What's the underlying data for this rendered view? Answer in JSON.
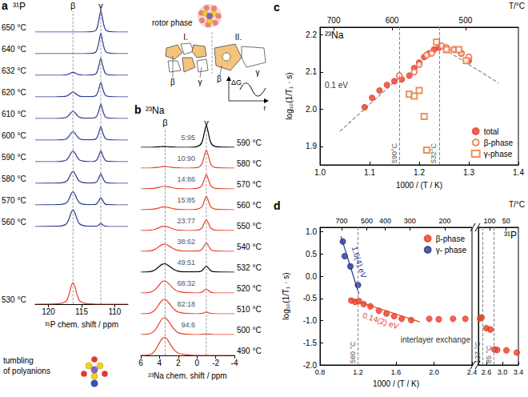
{
  "chart_data": [
    {
      "letter": "a",
      "type": "spectra",
      "title": "³¹P",
      "xlabel": "³¹P chem. shift / ppm",
      "xlim": [
        122,
        108
      ],
      "xticks": [
        120,
        115,
        110
      ],
      "ylim": [
        0,
        1
      ],
      "tick_labels": "x",
      "grid": false,
      "x": [
        122,
        119,
        118,
        117.3,
        116.9,
        116.6,
        116.3,
        116.0,
        115.7,
        115.3,
        114.6,
        113.5,
        112.8,
        112.4,
        112.1,
        111.8,
        111.4,
        110.8,
        109.5,
        108
      ],
      "reference_lines": [
        {
          "x": 116.3,
          "label": "β"
        },
        {
          "x": 112.1,
          "label": "γ"
        }
      ],
      "series": [
        {
          "name": "650 °C",
          "color": "#2b3990",
          "values": [
            0,
            0,
            0,
            0,
            0,
            0,
            0,
            0,
            0,
            0,
            0,
            0.01,
            0.09,
            0.5,
            0.9,
            0.5,
            0.09,
            0.02,
            0,
            0
          ]
        },
        {
          "name": "640 °C",
          "color": "#2b3990",
          "values": [
            0,
            0,
            0,
            0,
            0,
            0,
            0,
            0,
            0,
            0,
            0,
            0.01,
            0.09,
            0.47,
            0.85,
            0.47,
            0.09,
            0.02,
            0,
            0
          ]
        },
        {
          "name": "632 °C",
          "color": "#2b3990",
          "values": [
            0,
            0,
            0,
            0.02,
            0.05,
            0.1,
            0.12,
            0.1,
            0.05,
            0.02,
            0,
            0.01,
            0.07,
            0.39,
            0.7,
            0.39,
            0.07,
            0.01,
            0,
            0
          ]
        },
        {
          "name": "620 °C",
          "color": "#2b3990",
          "values": [
            0,
            0,
            0.01,
            0.03,
            0.09,
            0.16,
            0.2,
            0.16,
            0.09,
            0.03,
            0.01,
            0.01,
            0.06,
            0.33,
            0.6,
            0.33,
            0.06,
            0.01,
            0,
            0
          ]
        },
        {
          "name": "610 °C",
          "color": "#2b3990",
          "values": [
            0,
            0,
            0.01,
            0.05,
            0.14,
            0.24,
            0.3,
            0.24,
            0.14,
            0.05,
            0.01,
            0.01,
            0.06,
            0.33,
            0.6,
            0.33,
            0.06,
            0.01,
            0,
            0
          ]
        },
        {
          "name": "600 °C",
          "color": "#2b3990",
          "values": [
            0,
            0,
            0.01,
            0.05,
            0.16,
            0.28,
            0.35,
            0.28,
            0.16,
            0.05,
            0.01,
            0.01,
            0.06,
            0.3,
            0.55,
            0.3,
            0.06,
            0.01,
            0,
            0
          ]
        },
        {
          "name": "590 °C",
          "color": "#2b3990",
          "values": [
            0,
            0,
            0.02,
            0.07,
            0.2,
            0.36,
            0.45,
            0.36,
            0.2,
            0.07,
            0.02,
            0,
            0.05,
            0.25,
            0.45,
            0.25,
            0.05,
            0.01,
            0,
            0
          ]
        },
        {
          "name": "580 °C",
          "color": "#2b3990",
          "values": [
            0,
            0.01,
            0.02,
            0.08,
            0.23,
            0.4,
            0.5,
            0.4,
            0.23,
            0.08,
            0.02,
            0.01,
            0.04,
            0.22,
            0.4,
            0.22,
            0.04,
            0.01,
            0,
            0
          ]
        },
        {
          "name": "570 °C",
          "color": "#2b3990",
          "values": [
            0,
            0.01,
            0.02,
            0.08,
            0.25,
            0.44,
            0.55,
            0.44,
            0.25,
            0.08,
            0.02,
            0.01,
            0.03,
            0.17,
            0.3,
            0.17,
            0.03,
            0.01,
            0,
            0
          ]
        },
        {
          "name": "560 °C",
          "color": "#2b3990",
          "values": [
            0,
            0.01,
            0.03,
            0.11,
            0.32,
            0.56,
            0.7,
            0.56,
            0.32,
            0.11,
            0.03,
            0.01,
            0.01,
            0.07,
            0.12,
            0.07,
            0.01,
            0,
            0,
            0
          ]
        },
        {
          "name": "530 °C",
          "color": "#e8402a",
          "values": [
            0,
            0.01,
            0.04,
            0.14,
            0.41,
            0.72,
            0.9,
            0.72,
            0.41,
            0.14,
            0.04,
            0.01,
            0,
            0,
            0,
            0,
            0,
            0,
            0,
            0
          ]
        }
      ]
    },
    {
      "letter": "b",
      "type": "spectra",
      "title": "²³Na",
      "xlabel": "²³Na chem. shift / ppm",
      "xlim": [
        6,
        -4
      ],
      "xticks": [
        6,
        4,
        2,
        0,
        -2,
        -4
      ],
      "ylim": [
        0,
        1
      ],
      "tick_labels": "x",
      "grid": false,
      "x": [
        6,
        5,
        4.5,
        4,
        3.7,
        3.4,
        3,
        2.5,
        2,
        1,
        0,
        -0.5,
        -0.8,
        -1,
        -1.2,
        -1.5,
        -2,
        -4
      ],
      "reference_lines": [
        {
          "x": 3.4,
          "label": "β"
        },
        {
          "x": -1,
          "label": "γ"
        }
      ],
      "series": [
        {
          "name": "590 °C",
          "ratio": "5:95",
          "color": "#000000",
          "values": [
            0,
            0,
            0.01,
            0.02,
            0.03,
            0.03,
            0.02,
            0.01,
            0,
            0,
            0.03,
            0.18,
            0.63,
            0.9,
            0.63,
            0.18,
            0.03,
            0
          ]
        },
        {
          "name": "580 °C",
          "ratio": "10:90",
          "color": "#e8402a",
          "values": [
            0,
            0,
            0.02,
            0.04,
            0.06,
            0.06,
            0.05,
            0.02,
            0.01,
            0,
            0.02,
            0.15,
            0.53,
            0.75,
            0.53,
            0.15,
            0.02,
            0
          ]
        },
        {
          "name": "570 °C",
          "ratio": "14:86",
          "color": "#e8402a",
          "values": [
            0,
            0.01,
            0.03,
            0.07,
            0.1,
            0.1,
            0.08,
            0.04,
            0.01,
            0,
            0.02,
            0.12,
            0.42,
            0.6,
            0.42,
            0.12,
            0.02,
            0
          ]
        },
        {
          "name": "560 °C",
          "ratio": "15:85",
          "color": "#e8402a",
          "values": [
            0,
            0.01,
            0.03,
            0.08,
            0.11,
            0.12,
            0.09,
            0.04,
            0.01,
            0,
            0.02,
            0.11,
            0.39,
            0.55,
            0.39,
            0.11,
            0.02,
            0
          ]
        },
        {
          "name": "550 °C",
          "ratio": "23:77",
          "color": "#e8402a",
          "values": [
            0,
            0.01,
            0.05,
            0.13,
            0.17,
            0.18,
            0.14,
            0.06,
            0.02,
            0,
            0.01,
            0.09,
            0.32,
            0.45,
            0.32,
            0.09,
            0.01,
            0
          ]
        },
        {
          "name": "540 °C",
          "ratio": "38:62",
          "color": "#e8402a",
          "values": [
            0,
            0.02,
            0.08,
            0.21,
            0.29,
            0.3,
            0.23,
            0.11,
            0.04,
            0.01,
            0.01,
            0.07,
            0.25,
            0.35,
            0.25,
            0.07,
            0.01,
            0
          ]
        },
        {
          "name": "532 °C",
          "ratio": "49:51",
          "color": "#000000",
          "values": [
            0,
            0.02,
            0.09,
            0.25,
            0.33,
            0.35,
            0.26,
            0.12,
            0.04,
            0.01,
            0.01,
            0.05,
            0.18,
            0.25,
            0.18,
            0.05,
            0.01,
            0
          ]
        },
        {
          "name": "520 °C",
          "ratio": "68:32",
          "color": "#e8402a",
          "values": [
            0,
            0.03,
            0.13,
            0.35,
            0.48,
            0.5,
            0.38,
            0.18,
            0.06,
            0.01,
            0,
            0.03,
            0.11,
            0.15,
            0.11,
            0.03,
            0,
            0
          ]
        },
        {
          "name": "510 °C",
          "ratio": "82:18",
          "color": "#e8402a",
          "values": [
            0,
            0.03,
            0.15,
            0.42,
            0.57,
            0.6,
            0.45,
            0.21,
            0.07,
            0.01,
            0,
            0.01,
            0.05,
            0.07,
            0.05,
            0.01,
            0,
            0
          ]
        },
        {
          "name": "500 °C",
          "ratio": "94:6",
          "color": "#e8402a",
          "values": [
            0,
            0.04,
            0.18,
            0.49,
            0.67,
            0.7,
            0.53,
            0.25,
            0.08,
            0.01,
            0,
            0.01,
            0.02,
            0.03,
            0.02,
            0.01,
            0,
            0
          ]
        },
        {
          "name": "490 °C",
          "color": "#e8402a",
          "values": [
            0,
            0.04,
            0.19,
            0.53,
            0.71,
            0.75,
            0.56,
            0.26,
            0.09,
            0.02,
            0,
            0,
            0,
            0,
            0,
            0,
            0,
            0
          ]
        }
      ]
    },
    {
      "letter": "c",
      "type": "scatter",
      "title": "²³Na",
      "xlabel": "1000 / (T / K)",
      "ylabel": "log₁₀(1/T₁ · s)",
      "x2label": "T/°C",
      "grid": false,
      "legend": "bottom right",
      "xlim": [
        1.0,
        1.4
      ],
      "xticks": [
        {
          "value": 1,
          "label": "1.0"
        },
        1.1,
        1.2,
        1.3,
        1.4
      ],
      "x2lim": [
        1.0,
        1.4
      ],
      "x2ticks": [
        {
          "value": 1.0276,
          "label": "700"
        },
        {
          "value": 1.1453,
          "label": "600"
        },
        {
          "value": 1.2934,
          "label": "500"
        }
      ],
      "ylim": [
        1.85,
        2.22
      ],
      "yticks": [
        1.9,
        {
          "value": 2,
          "label": "2.0"
        },
        2.1,
        2.2
      ],
      "reference_lines": [
        {
          "x": 1.1563,
          "label": "590°C"
        },
        {
          "x": 1.2422,
          "label": "532°C"
        }
      ],
      "annotations": [
        "0.1 eV"
      ],
      "series": [
        {
          "name": "total",
          "type": "scatter",
          "marker": "circle",
          "color": "#e8402a",
          "x": [
            1.09,
            1.105,
            1.12,
            1.135,
            1.15,
            1.165,
            1.18,
            1.19,
            1.2,
            1.21,
            1.22,
            1.23,
            1.24,
            1.255,
            1.27,
            1.285,
            1.3
          ],
          "values": [
            2.005,
            2.03,
            2.05,
            2.065,
            2.075,
            2.08,
            2.09,
            2.11,
            2.125,
            2.14,
            2.15,
            2.16,
            2.165,
            2.16,
            2.16,
            2.15,
            2.13
          ]
        },
        {
          "name": "β-phase",
          "type": "scatter",
          "marker": "open circle",
          "color": "#ef6a4c",
          "x": [
            1.16,
            1.19,
            1.2,
            1.215,
            1.225,
            1.245,
            1.255,
            1.27,
            1.285,
            1.3
          ],
          "values": [
            2.09,
            2.1,
            2.12,
            2.145,
            2.15,
            2.17,
            2.165,
            2.16,
            2.15,
            2.14
          ]
        },
        {
          "name": "γ-phase",
          "type": "scatter",
          "marker": "open square",
          "color": "#e07b39",
          "x": [
            1.18,
            1.19,
            1.2,
            1.21,
            1.215,
            1.235,
            1.255,
            1.28,
            1.295
          ],
          "values": [
            2.04,
            2.035,
            2.05,
            1.98,
            1.89,
            2.18,
            2.16,
            2.16,
            2.13
          ]
        },
        {
          "type": "line",
          "line_style": "dashed",
          "color": "#888888",
          "x": [
            1.04,
            1.16
          ],
          "values": [
            1.94,
            2.085
          ]
        },
        {
          "type": "line",
          "line_style": "dashed",
          "color": "#888888",
          "x": [
            1.24,
            1.36
          ],
          "values": [
            2.17,
            2.07
          ]
        }
      ]
    },
    {
      "letter": "d",
      "type": "scatter",
      "title": "³¹P",
      "xlabel": "1000 / (T / K)",
      "ylabel": "log₁₀(1/T₁ · s)",
      "x2label": "T/°C",
      "grid": false,
      "legend": "top right",
      "x_segments": [
        {
          "xlim": [
            0.8,
            2.4
          ],
          "xticks": [
            0.8,
            1.2,
            1.6,
            {
              "value": 2,
              "label": "2.0"
            },
            2.4
          ],
          "x2ticks": [
            {
              "value": 1.0276,
              "label": "700"
            },
            {
              "value": 1.2934,
              "label": "500"
            },
            {
              "value": 1.4857,
              "label": "400"
            },
            {
              "value": 1.7447,
              "label": "300"
            },
            {
              "value": 2.1135,
              "label": "200"
            }
          ]
        },
        {
          "xlim": [
            2.4,
            3.4
          ],
          "xticks": [
            2.6,
            {
              "value": 3,
              "label": "3.0"
            },
            3.4
          ],
          "x2ticks": [
            {
              "value": 2.6799,
              "label": "100"
            },
            {
              "value": 3.0945,
              "label": "50"
            }
          ]
        }
      ],
      "ylim": [
        -2.0,
        1.1
      ],
      "yticks": [
        {
          "value": -2,
          "label": "-2.0"
        },
        -1.5,
        {
          "value": -1,
          "label": "-1.0"
        },
        -0.5,
        {
          "value": 0,
          "label": "0.0"
        },
        0.5,
        {
          "value": 1,
          "label": "1.0"
        }
      ],
      "reference_lines": [
        {
          "x": 1.2003,
          "label": "560 °C"
        },
        {
          "x": 2.4988,
          "label": "127 °C"
        },
        {
          "x": 2.7925,
          "label": "85 °C"
        }
      ],
      "annotations": [
        "interlayer exchange"
      ],
      "series": [
        {
          "name": "β-phase",
          "type": "scatter",
          "marker": "circle",
          "color": "#e8402a",
          "x": [
            1.13,
            1.17,
            1.21,
            1.26,
            1.33,
            1.42,
            1.5,
            1.58,
            1.66,
            1.76,
            1.95,
            2.05,
            2.2,
            2.33,
            2.44,
            2.48,
            2.6,
            2.7,
            2.8,
            2.87,
            3.1,
            3.36
          ],
          "values": [
            -0.55,
            -0.58,
            -0.56,
            -0.63,
            -0.68,
            -0.78,
            -0.84,
            -0.9,
            -0.96,
            -0.99,
            -0.96,
            -0.97,
            -0.96,
            -0.96,
            -0.95,
            -0.93,
            -1.17,
            -1.2,
            -1.65,
            -1.66,
            -1.67,
            -1.72
          ]
        },
        {
          "name": "γ- phase",
          "type": "scatter",
          "marker": "circle",
          "color": "#2c3a8f",
          "x": [
            1.04,
            1.06,
            1.12,
            1.2
          ],
          "values": [
            0.78,
            0.45,
            0.22,
            -0.2
          ]
        },
        {
          "type": "line",
          "line_style": "solid",
          "color": "#2c3a8f",
          "label": "1.6(4) eV",
          "x": [
            1.02,
            1.21
          ],
          "values": [
            0.9,
            -0.4
          ]
        },
        {
          "type": "line",
          "line_style": "solid",
          "color": "#e8402a",
          "label": "0.14(2) eV",
          "x": [
            1.1,
            1.85
          ],
          "values": [
            -0.5,
            -1.03
          ]
        }
      ]
    }
  ],
  "schematic": {
    "rotor_label": "rotor phase",
    "tumbling_label": "tumbling of polyanions",
    "regions": [
      "I.",
      "II."
    ],
    "phase_labels": [
      "β",
      "γ"
    ],
    "energy_axis": "ΔG",
    "coordinate_axis": "r"
  }
}
